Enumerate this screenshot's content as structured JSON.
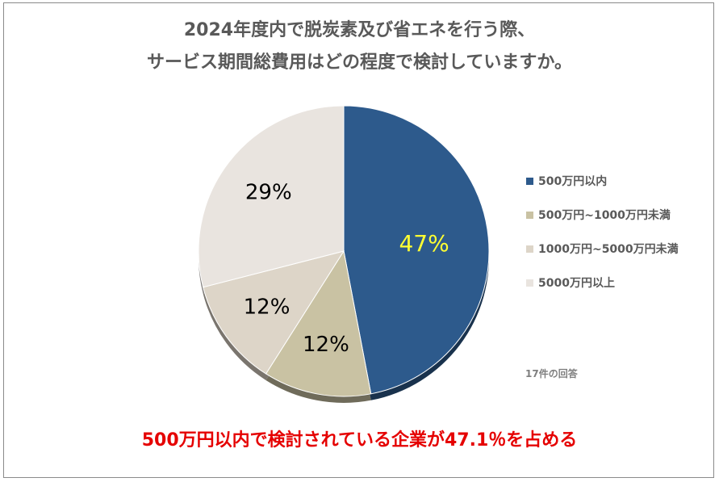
{
  "title": {
    "line1": "2024年度内で脱炭素及び省エネを行う際、",
    "line2": "サービス期間総費用はどの程度で検討していますか。"
  },
  "chart_data": {
    "type": "pie",
    "title": "2024年度内で脱炭素及び省エネを行う際、サービス期間総費用はどの程度で検討していますか。",
    "categories": [
      "500万円以内",
      "500万円~1000万円未満",
      "1000万円~5000万円未満",
      "5000万円以上"
    ],
    "values": [
      47,
      12,
      12,
      29
    ],
    "labels": [
      "47%",
      "12%",
      "12%",
      "29%"
    ],
    "colors": [
      "#2d5a8c",
      "#c9c2a3",
      "#ddd5c8",
      "#e9e4df"
    ],
    "label_colors": [
      "#ffff33",
      "#000000",
      "#000000",
      "#000000"
    ],
    "legend_placement": "right"
  },
  "note": "17件の回答",
  "summary": "500万円以内で検討されている企業が47.1％を占める"
}
